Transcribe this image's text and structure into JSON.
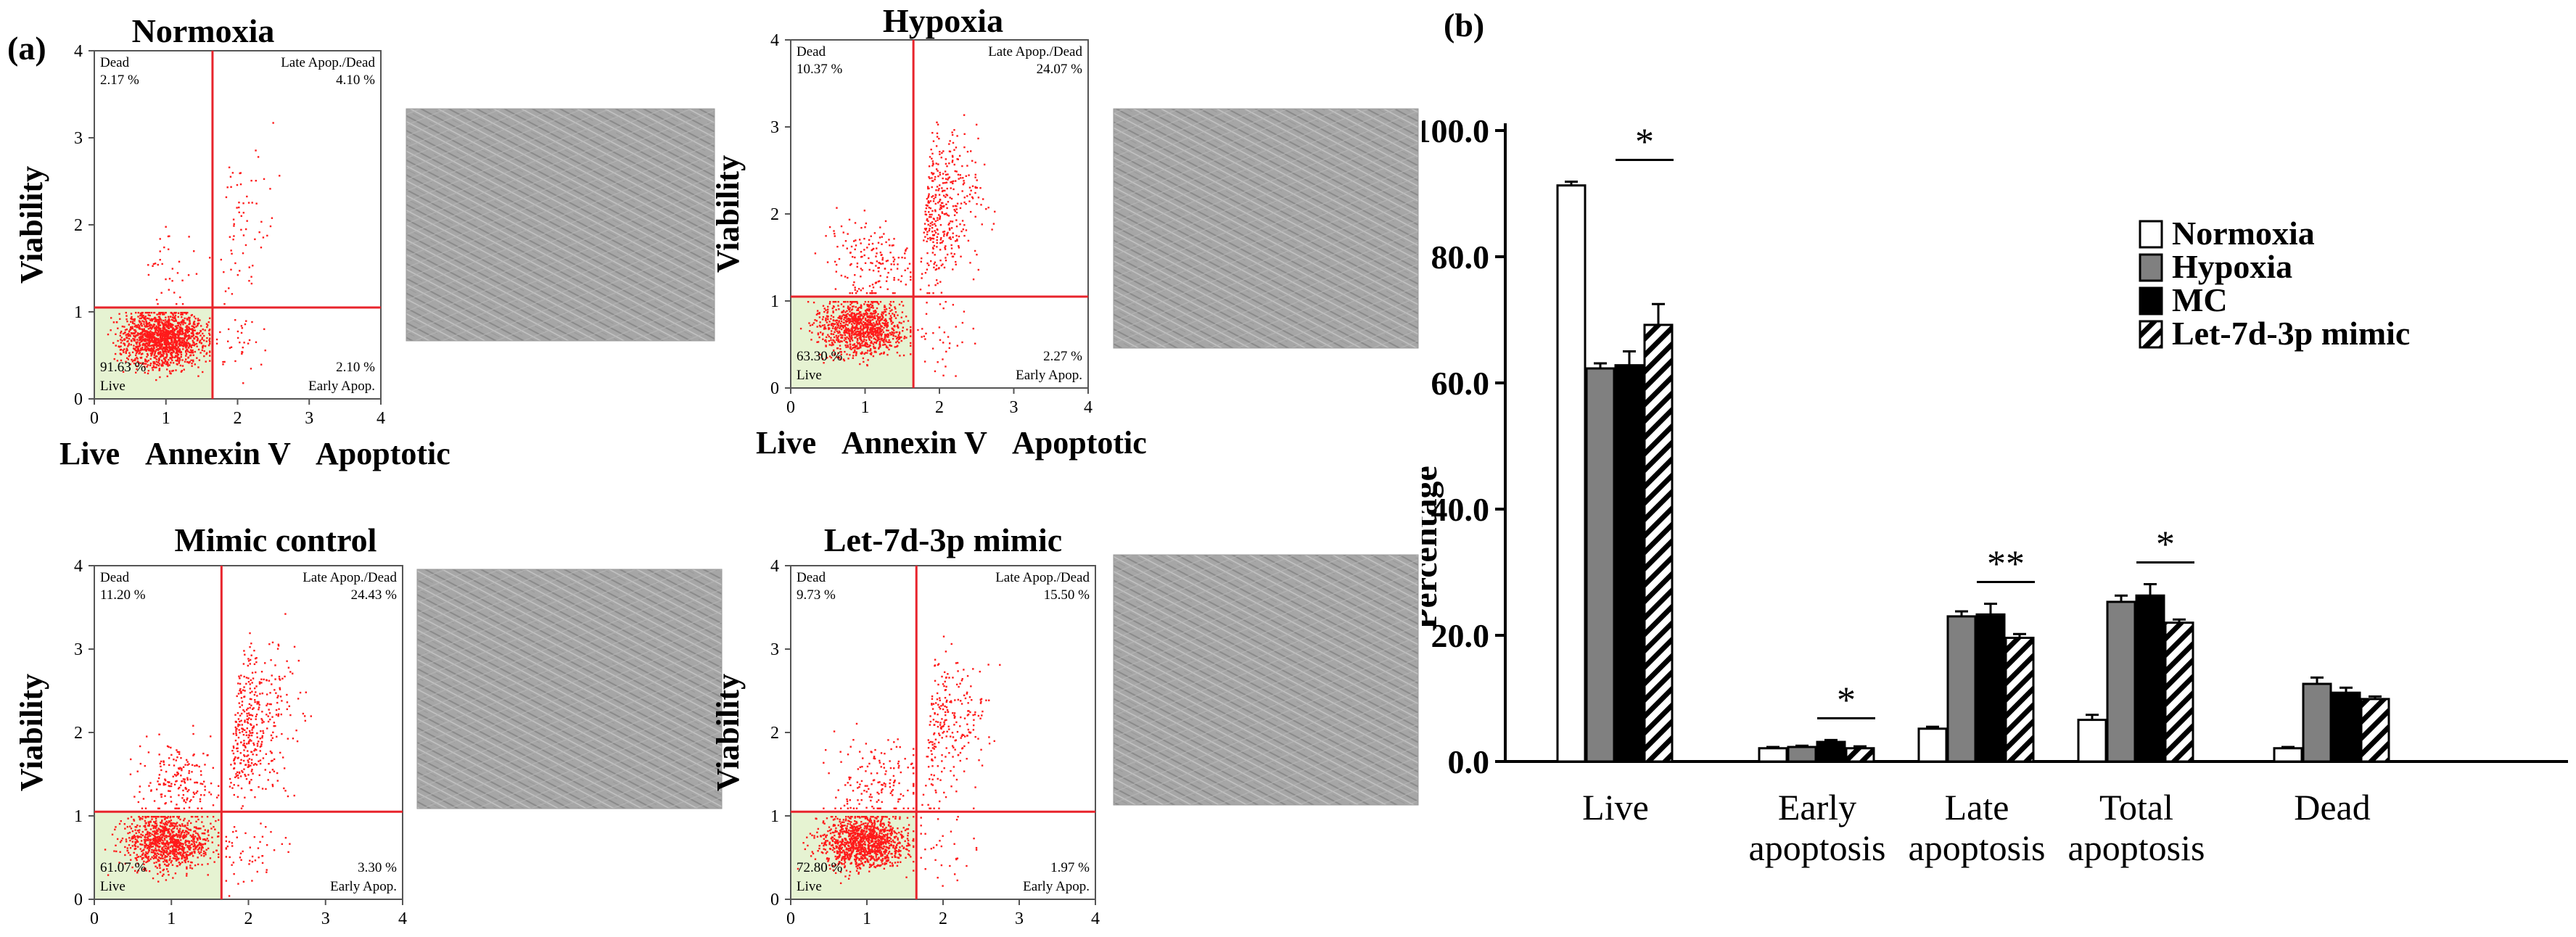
{
  "panel_labels": {
    "a": "(a)",
    "b": "(b)"
  },
  "facs": [
    {
      "title": "Normoxia",
      "q": {
        "dead": "2.17 %",
        "late": "4.10 %",
        "live": "91.63 %",
        "early": "2.10 %"
      },
      "dist": {
        "live": 0.9163,
        "early": 0.021,
        "late": 0.041,
        "dead": 0.0217
      },
      "gate": [
        1.65,
        1.05
      ]
    },
    {
      "title": "Hypoxia",
      "q": {
        "dead": "10.37 %",
        "late": "24.07 %",
        "live": "63.30 %",
        "early": "2.27 %"
      },
      "dist": {
        "live": 0.633,
        "early": 0.0227,
        "late": 0.2407,
        "dead": 0.1037
      },
      "gate": [
        1.65,
        1.05
      ]
    },
    {
      "title": "Mimic control",
      "q": {
        "dead": "11.20 %",
        "late": "24.43 %",
        "live": "61.07 %",
        "early": "3.30 %"
      },
      "dist": {
        "live": 0.6107,
        "early": 0.033,
        "late": 0.2443,
        "dead": 0.112
      },
      "gate": [
        1.65,
        1.05
      ]
    },
    {
      "title": "Let-7d-3p mimic",
      "q": {
        "dead": "9.73 %",
        "late": "15.50 %",
        "live": "72.80 %",
        "early": "1.97 %"
      },
      "dist": {
        "live": 0.728,
        "early": 0.0197,
        "late": 0.155,
        "dead": 0.0973
      },
      "gate": [
        1.65,
        1.05
      ]
    }
  ],
  "facs_text": {
    "quadrant_dead": "Dead",
    "quadrant_late": "Late Apop./Dead",
    "quadrant_live": "Live",
    "quadrant_early": "Early Apop.",
    "x_ticks": [
      "0",
      "1",
      "2",
      "3",
      "4"
    ],
    "y_ticks": [
      "0",
      "1",
      "2",
      "3",
      "4"
    ],
    "ylabel": "Viability",
    "x_left": "Live",
    "x_mid": "Annexin V",
    "x_right": "Apoptotic",
    "axis_range": [
      0,
      4
    ]
  },
  "colors": {
    "dots": "#ff1a1a",
    "gate": "#e8242c",
    "live_quad": "#e6f3d2",
    "micro_bg": "#a3a3a3"
  },
  "chart_data": {
    "type": "bar",
    "title": "",
    "ylabel": "Percentage",
    "xlabel": "",
    "ylim": [
      0,
      100
    ],
    "y_ticks": [
      "0.0",
      "20.0",
      "40.0",
      "60.0",
      "80.0",
      "100.0"
    ],
    "y_tick_values": [
      0,
      20,
      40,
      60,
      80,
      100
    ],
    "categories": [
      [
        "Live"
      ],
      [
        "Early",
        "apoptosis"
      ],
      [
        "Late",
        "apoptosis"
      ],
      [
        "Total",
        "apoptosis"
      ],
      [
        "Dead"
      ]
    ],
    "series": [
      {
        "name": "Normoxia",
        "fill": "white",
        "values": [
          91.3,
          2.1,
          5.2,
          6.6,
          2.1
        ],
        "errors": [
          0.6,
          0.2,
          0.3,
          0.8,
          0.2
        ]
      },
      {
        "name": "Hypoxia",
        "fill": "gray",
        "values": [
          62.3,
          2.3,
          23.0,
          25.3,
          12.3
        ],
        "errors": [
          0.8,
          0.2,
          0.8,
          1.0,
          1.0
        ]
      },
      {
        "name": "MC",
        "fill": "black",
        "values": [
          62.8,
          3.1,
          23.3,
          26.3,
          10.9
        ],
        "errors": [
          2.2,
          0.3,
          1.7,
          1.8,
          0.8
        ]
      },
      {
        "name": "Let-7d-3p mimic",
        "fill": "hatch",
        "values": [
          69.2,
          2.1,
          19.6,
          22.0,
          9.9
        ],
        "errors": [
          3.3,
          0.3,
          0.6,
          0.5,
          0.4
        ]
      }
    ],
    "significance": [
      {
        "category": 0,
        "label": "*"
      },
      {
        "category": 1,
        "label": "*"
      },
      {
        "category": 2,
        "label": "**"
      },
      {
        "category": 3,
        "label": "*"
      }
    ],
    "legend_position": "top-right"
  }
}
